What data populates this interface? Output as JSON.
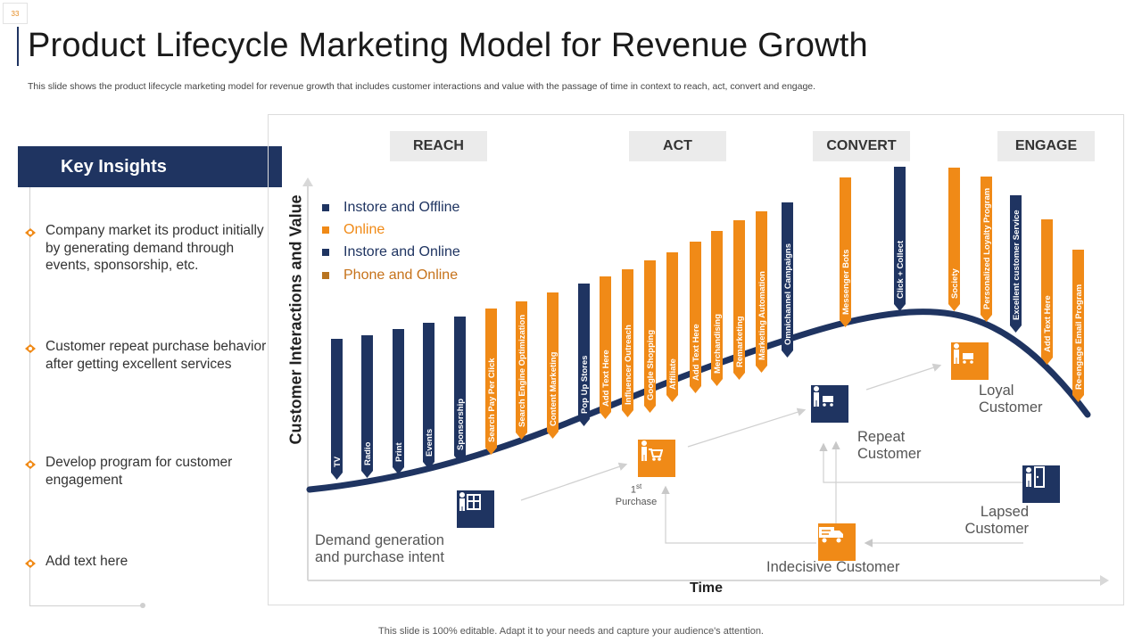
{
  "slide_number": "33",
  "title": "Product Lifecycle Marketing Model for Revenue Growth",
  "subtitle": "This slide shows the product lifecycle marketing model for revenue growth that includes customer interactions and value with the passage of time in context to reach, act, convert and engage.",
  "footer": "This slide is 100% editable. Adapt it to your needs and capture your audience's attention.",
  "insights": {
    "heading": "Key Insights",
    "items": [
      "Company market its product initially by generating demand through events, sponsorship, etc.",
      "Customer repeat purchase behavior after getting excellent services",
      "Develop program for customer engagement",
      "Add text here"
    ]
  },
  "stages": [
    "REACH",
    "ACT",
    "CONVERT",
    "ENGAGE"
  ],
  "legend": [
    {
      "label": "Instore and Offline",
      "color": "#1f3461"
    },
    {
      "label": "Online",
      "color": "#f08a17"
    },
    {
      "label": "Instore and Online",
      "color": "#1f3461"
    },
    {
      "label": "Phone and Online",
      "color": "#b87420"
    }
  ],
  "axes": {
    "y": "Customer Interactions and Value",
    "x": "Time"
  },
  "colors": {
    "navy": "#1f3461",
    "orange": "#f08a17",
    "curve": "#1f3461"
  },
  "channels": [
    {
      "label": "TV",
      "color": "navy"
    },
    {
      "label": "Radio",
      "color": "navy"
    },
    {
      "label": "Print",
      "color": "navy"
    },
    {
      "label": "Events",
      "color": "navy"
    },
    {
      "label": "Sponsorship",
      "color": "navy"
    },
    {
      "label": "Search Pay Per Click",
      "color": "orange"
    },
    {
      "label": "Search Engine Optimization",
      "color": "orange"
    },
    {
      "label": "Content Marketing",
      "color": "orange"
    },
    {
      "label": "Pop Up Stores",
      "color": "navy"
    },
    {
      "label": "Add Text Here",
      "color": "orange"
    },
    {
      "label": "Influencer Outreach",
      "color": "orange"
    },
    {
      "label": "Google Shopping",
      "color": "orange"
    },
    {
      "label": "Affiliate",
      "color": "orange"
    },
    {
      "label": "Add Text Here",
      "color": "orange"
    },
    {
      "label": "Merchandising",
      "color": "orange"
    },
    {
      "label": "Remarketing",
      "color": "orange"
    },
    {
      "label": "Marketing Automation",
      "color": "orange"
    },
    {
      "label": "Omnichannel Campaigns",
      "color": "navy"
    },
    {
      "label": "Messenger Bots",
      "color": "orange"
    },
    {
      "label": "Click + Collect",
      "color": "navy"
    },
    {
      "label": "Society",
      "color": "orange"
    },
    {
      "label": "Personalized Loyalty Program",
      "color": "orange"
    },
    {
      "label": "Excellent customer Service",
      "color": "navy"
    },
    {
      "label": "Add Text Here",
      "color": "orange"
    },
    {
      "label": "Re-engage Email Program",
      "color": "orange"
    }
  ],
  "journey": {
    "demand": "Demand generation\nand purchase intent",
    "first_purchase_num": "1",
    "first_purchase_sup": "st",
    "first_purchase_word": "Purchase",
    "repeat": "Repeat\nCustomer",
    "loyal": "Loyal\nCustomer",
    "lapsed": "Lapsed\nCustomer",
    "indecisive": "Indecisive Customer"
  },
  "icons": {
    "demand": "store-icon",
    "first_purchase": "shopper-cart-icon",
    "repeat": "person-cart-icon",
    "loyal": "person-cart-icon",
    "lapsed": "exit-door-icon",
    "indecisive": "delivery-truck-icon"
  }
}
